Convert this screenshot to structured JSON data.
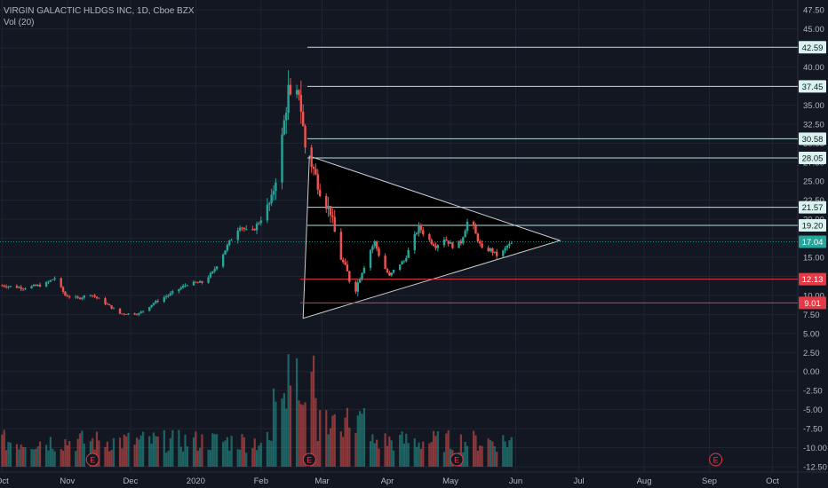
{
  "header": {
    "symbol_line": "VIRGIN GALACTIC HLDGS INC, 1D, Cboe BZX",
    "volume_line": "Vol (20)"
  },
  "colors": {
    "background": "#131722",
    "grid": "#1f2431",
    "up": "#26a69a",
    "down": "#ef5350",
    "level_line": "#b2dfdb",
    "support_line": "#e53945",
    "triangle_fill": "#000000",
    "triangle_stroke": "#c9cdd4",
    "axis_text": "#b2b5be",
    "earnings": "#e53945"
  },
  "chart_data": {
    "type": "candlestick",
    "symbol": "VIRGIN GALACTIC HLDGS INC",
    "interval": "1D",
    "exchange": "Cboe BZX",
    "y_axis": {
      "range": [
        -13.2,
        48.8
      ],
      "ticks": [
        "47.50",
        "45.00",
        "42.50",
        "40.00",
        "37.50",
        "35.00",
        "32.50",
        "30.00",
        "27.50",
        "25.00",
        "22.50",
        "20.00",
        "17.50",
        "15.00",
        "12.50",
        "10.00",
        "7.50",
        "5.00",
        "2.50",
        "0.00",
        "-2.50",
        "-5.00",
        "-7.50",
        "-10.00",
        "-12.50"
      ]
    },
    "x_axis": {
      "labels": [
        {
          "label": "Oct",
          "day": 0
        },
        {
          "label": "Nov",
          "day": 31
        },
        {
          "label": "Dec",
          "day": 61
        },
        {
          "label": "2020",
          "day": 92
        },
        {
          "label": "Feb",
          "day": 123
        },
        {
          "label": "Mar",
          "day": 152
        },
        {
          "label": "Apr",
          "day": 183
        },
        {
          "label": "May",
          "day": 213
        },
        {
          "label": "Jun",
          "day": 244
        },
        {
          "label": "Jul",
          "day": 274
        },
        {
          "label": "Aug",
          "day": 305
        },
        {
          "label": "Sep",
          "day": 336
        },
        {
          "label": "Oct",
          "day": 366
        }
      ],
      "range_days": [
        -1,
        378
      ]
    },
    "price_levels": [
      {
        "label": "42.59",
        "value": 42.59,
        "kind": "resistance"
      },
      {
        "label": "37.45",
        "value": 37.45,
        "kind": "resistance"
      },
      {
        "label": "30.58",
        "value": 30.58,
        "kind": "resistance"
      },
      {
        "label": "28.05",
        "value": 28.05,
        "kind": "resistance"
      },
      {
        "label": "21.57",
        "value": 21.57,
        "kind": "resistance"
      },
      {
        "label": "19.20",
        "value": 19.2,
        "kind": "resistance"
      },
      {
        "label": "12.13",
        "value": 12.13,
        "kind": "support"
      },
      {
        "label": "9.01",
        "value": 9.01,
        "kind": "support"
      }
    ],
    "current_price": {
      "label": "17.04",
      "value": 17.04
    },
    "triangle": {
      "points": [
        {
          "day": 146,
          "price": 28.3
        },
        {
          "day": 143,
          "price": 7.0
        },
        {
          "day": 265,
          "price": 17.2
        }
      ]
    },
    "earnings_markers": [
      {
        "label": "E",
        "day": 43
      },
      {
        "label": "E",
        "day": 146
      },
      {
        "label": "E",
        "day": 216
      },
      {
        "label": "E",
        "day": 339
      }
    ],
    "volume_pane": {
      "base_value": -12.5,
      "max_height_value": 2.7
    },
    "ohlc_anchor_series": [
      {
        "day": 0,
        "price": 11.3
      },
      {
        "day": 10,
        "price": 11.0
      },
      {
        "day": 20,
        "price": 11.4
      },
      {
        "day": 25,
        "price": 12.3
      },
      {
        "day": 30,
        "price": 10.0
      },
      {
        "day": 36,
        "price": 9.6
      },
      {
        "day": 42,
        "price": 10.2
      },
      {
        "day": 50,
        "price": 8.8
      },
      {
        "day": 56,
        "price": 7.6
      },
      {
        "day": 65,
        "price": 7.6
      },
      {
        "day": 72,
        "price": 9.0
      },
      {
        "day": 80,
        "price": 10.2
      },
      {
        "day": 88,
        "price": 11.5
      },
      {
        "day": 95,
        "price": 11.7
      },
      {
        "day": 100,
        "price": 13.0
      },
      {
        "day": 108,
        "price": 17.0
      },
      {
        "day": 113,
        "price": 19.2
      },
      {
        "day": 118,
        "price": 18.0
      },
      {
        "day": 124,
        "price": 20.5
      },
      {
        "day": 128,
        "price": 22.5
      },
      {
        "day": 132,
        "price": 28.5
      },
      {
        "day": 136,
        "price": 37.0
      },
      {
        "day": 138,
        "price": 34.0
      },
      {
        "day": 141,
        "price": 37.0
      },
      {
        "day": 144,
        "price": 29.5
      },
      {
        "day": 148,
        "price": 26.5
      },
      {
        "day": 152,
        "price": 23.0
      },
      {
        "day": 156,
        "price": 21.0
      },
      {
        "day": 160,
        "price": 15.5
      },
      {
        "day": 164,
        "price": 13.0
      },
      {
        "day": 167,
        "price": 10.0
      },
      {
        "day": 170,
        "price": 12.5
      },
      {
        "day": 174,
        "price": 15.5
      },
      {
        "day": 177,
        "price": 17.0
      },
      {
        "day": 180,
        "price": 14.5
      },
      {
        "day": 184,
        "price": 12.5
      },
      {
        "day": 188,
        "price": 14.0
      },
      {
        "day": 191,
        "price": 14.5
      },
      {
        "day": 194,
        "price": 16.5
      },
      {
        "day": 198,
        "price": 19.0
      },
      {
        "day": 202,
        "price": 17.5
      },
      {
        "day": 206,
        "price": 16.5
      },
      {
        "day": 210,
        "price": 17.5
      },
      {
        "day": 214,
        "price": 16.5
      },
      {
        "day": 218,
        "price": 17.0
      },
      {
        "day": 222,
        "price": 20.5
      },
      {
        "day": 225,
        "price": 18.0
      },
      {
        "day": 228,
        "price": 16.0
      },
      {
        "day": 232,
        "price": 16.0
      },
      {
        "day": 236,
        "price": 15.0
      },
      {
        "day": 240,
        "price": 16.5
      },
      {
        "day": 244,
        "price": 17.04
      }
    ]
  }
}
